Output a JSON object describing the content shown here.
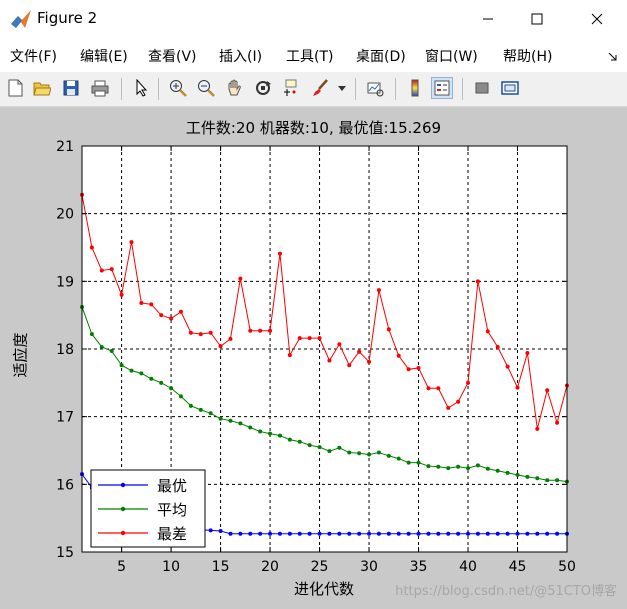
{
  "window": {
    "title": "Figure 2",
    "icon": "matlab-icon"
  },
  "menu": [
    "文件(F)",
    "编辑(E)",
    "查看(V)",
    "插入(I)",
    "工具(T)",
    "桌面(D)",
    "窗口(W)",
    "帮助(H)"
  ],
  "toolbar": [
    "new-figure-icon",
    "open-folder-icon",
    "save-icon",
    "print-icon",
    "pointer-icon",
    "zoom-in-icon",
    "zoom-out-icon",
    "pan-hand-icon",
    "rotate-3d-icon",
    "data-cursor-icon",
    "brush-icon",
    "link-plot-icon",
    "colorbar-icon",
    "legend-icon",
    "hide-plot-tools-icon",
    "show-plot-tools-icon"
  ],
  "watermark": "https://blog.csdn.net/@51CTO博客",
  "chart_data": {
    "type": "line",
    "title": "工件数:20 机器数:10, 最优值:15.269",
    "xlabel": "进化代数",
    "ylabel": "适应度",
    "xlim": [
      1,
      50
    ],
    "ylim": [
      15,
      21
    ],
    "xticks": [
      5,
      10,
      15,
      20,
      25,
      30,
      35,
      40,
      45,
      50
    ],
    "yticks": [
      15,
      16,
      17,
      18,
      19,
      20,
      21
    ],
    "grid": true,
    "legend_position": "bottom-left",
    "x": [
      1,
      2,
      3,
      4,
      5,
      6,
      7,
      8,
      9,
      10,
      11,
      12,
      13,
      14,
      15,
      16,
      17,
      18,
      19,
      20,
      21,
      22,
      23,
      24,
      25,
      26,
      27,
      28,
      29,
      30,
      31,
      32,
      33,
      34,
      35,
      36,
      37,
      38,
      39,
      40,
      41,
      42,
      43,
      44,
      45,
      46,
      47,
      48,
      49,
      50
    ],
    "series": [
      {
        "name": "最优",
        "color": "#0000ff",
        "values": [
          16.15,
          15.95,
          15.9,
          15.82,
          15.75,
          15.7,
          15.62,
          15.55,
          15.5,
          15.45,
          15.4,
          15.36,
          15.33,
          15.32,
          15.31,
          15.27,
          15.27,
          15.27,
          15.27,
          15.27,
          15.27,
          15.27,
          15.27,
          15.27,
          15.27,
          15.27,
          15.27,
          15.27,
          15.27,
          15.27,
          15.27,
          15.27,
          15.27,
          15.27,
          15.27,
          15.27,
          15.27,
          15.27,
          15.27,
          15.27,
          15.27,
          15.27,
          15.27,
          15.27,
          15.27,
          15.27,
          15.27,
          15.27,
          15.27,
          15.27
        ]
      },
      {
        "name": "平均",
        "color": "#008000",
        "values": [
          18.62,
          18.22,
          18.03,
          17.97,
          17.76,
          17.68,
          17.64,
          17.56,
          17.5,
          17.42,
          17.3,
          17.16,
          17.1,
          17.05,
          16.97,
          16.94,
          16.9,
          16.84,
          16.78,
          16.75,
          16.72,
          16.66,
          16.63,
          16.58,
          16.55,
          16.49,
          16.54,
          16.47,
          16.46,
          16.44,
          16.47,
          16.42,
          16.38,
          16.32,
          16.32,
          16.27,
          16.26,
          16.24,
          16.26,
          16.24,
          16.28,
          16.23,
          16.2,
          16.17,
          16.14,
          16.11,
          16.09,
          16.06,
          16.06,
          16.04
        ]
      },
      {
        "name": "最差",
        "color": "#ff0000",
        "values": [
          20.28,
          19.5,
          19.16,
          19.18,
          18.8,
          19.58,
          18.68,
          18.66,
          18.5,
          18.45,
          18.55,
          18.24,
          18.22,
          18.24,
          18.04,
          18.15,
          19.04,
          18.27,
          18.27,
          18.27,
          19.41,
          17.91,
          18.16,
          18.16,
          18.16,
          17.83,
          18.07,
          17.76,
          17.96,
          17.81,
          18.87,
          18.29,
          17.9,
          17.7,
          17.72,
          17.42,
          17.42,
          17.13,
          17.22,
          17.5,
          19.0,
          18.26,
          18.03,
          17.74,
          17.43,
          17.94,
          16.82,
          17.39,
          16.91,
          17.46
        ]
      }
    ]
  }
}
